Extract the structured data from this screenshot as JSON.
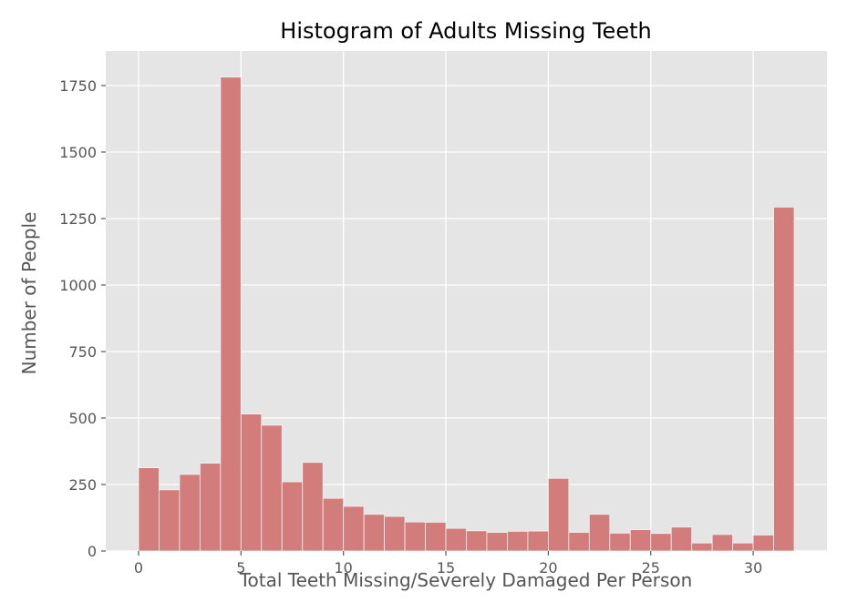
{
  "chart_data": {
    "type": "bar",
    "title": "Histogram of Adults Missing Teeth",
    "xlabel": "Total Teeth Missing/Severely Damaged Per Person",
    "ylabel": "Number of People",
    "xlim": [
      -1.6,
      33.6
    ],
    "ylim": [
      0,
      1880
    ],
    "xticks": [
      0,
      5,
      10,
      15,
      20,
      25,
      30
    ],
    "yticks": [
      0,
      250,
      500,
      750,
      1000,
      1250,
      1500,
      1750
    ],
    "grid": true,
    "bin_edges": [
      0,
      1,
      2,
      3,
      4,
      5,
      6,
      7,
      8,
      9,
      10,
      11,
      12,
      13,
      14,
      15,
      16,
      17,
      18,
      19,
      20,
      21,
      22,
      23,
      24,
      25,
      26,
      27,
      28,
      29,
      30,
      31,
      32
    ],
    "values": [
      313,
      230,
      288,
      330,
      1782,
      515,
      473,
      260,
      333,
      198,
      168,
      138,
      130,
      109,
      108,
      85,
      76,
      70,
      74,
      75,
      273,
      70,
      138,
      67,
      80,
      66,
      90,
      30,
      62,
      30,
      60,
      1293
    ],
    "colors": {
      "bar_fill": "#d27d7c",
      "bar_edge": "#f2f2f2",
      "plot_background": "#e5e5e5",
      "grid": "#ffffff"
    }
  }
}
